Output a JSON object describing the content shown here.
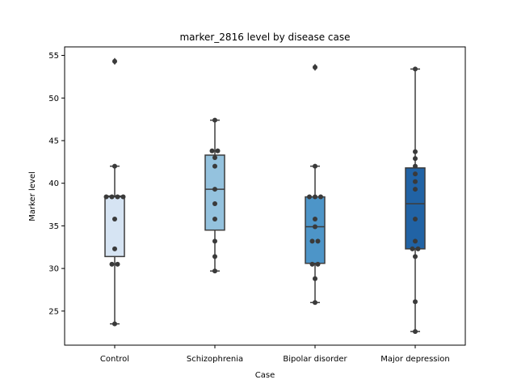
{
  "chart_data": {
    "type": "box",
    "title": "marker_2816 level by disease case",
    "xlabel": "Case",
    "ylabel": "Marker level",
    "ylim": [
      21,
      56
    ],
    "yticks": [
      25,
      30,
      35,
      40,
      45,
      50,
      55
    ],
    "categories": [
      "Control",
      "Schizophrenia",
      "Bipolar disorder",
      "Major depression"
    ],
    "boxes": [
      {
        "name": "Control",
        "color": "#d6e4f3",
        "whisker_low": 23.5,
        "q1": 31.4,
        "median": 38.4,
        "q3": 38.5,
        "whisker_high": 42.0,
        "outliers": [
          54.3
        ]
      },
      {
        "name": "Schizophrenia",
        "color": "#94c2de",
        "whisker_low": 29.7,
        "q1": 34.5,
        "median": 39.3,
        "q3": 43.3,
        "whisker_high": 47.4,
        "outliers": []
      },
      {
        "name": "Bipolar disorder",
        "color": "#4d95c8",
        "whisker_low": 26.0,
        "q1": 30.6,
        "median": 34.9,
        "q3": 38.4,
        "whisker_high": 42.0,
        "outliers": [
          53.6
        ]
      },
      {
        "name": "Major depression",
        "color": "#2163a5",
        "whisker_low": 22.6,
        "q1": 32.3,
        "median": 37.6,
        "q3": 41.8,
        "whisker_high": 53.4,
        "outliers": []
      }
    ],
    "points": [
      [
        23.5,
        30.5,
        30.5,
        32.3,
        35.8,
        38.4,
        38.4,
        38.4,
        38.4,
        42.0,
        54.3
      ],
      [
        29.7,
        31.4,
        33.2,
        35.8,
        37.6,
        39.3,
        42.0,
        43.0,
        43.8,
        43.8,
        47.4
      ],
      [
        26.0,
        28.8,
        30.5,
        30.5,
        33.2,
        33.2,
        34.9,
        35.8,
        38.4,
        38.4,
        38.4,
        42.0,
        53.6
      ],
      [
        22.6,
        26.1,
        31.4,
        32.3,
        32.3,
        33.2,
        35.8,
        39.3,
        40.2,
        41.1,
        42.0,
        42.9,
        43.7,
        53.4
      ]
    ],
    "grid": false,
    "legend": "none"
  }
}
